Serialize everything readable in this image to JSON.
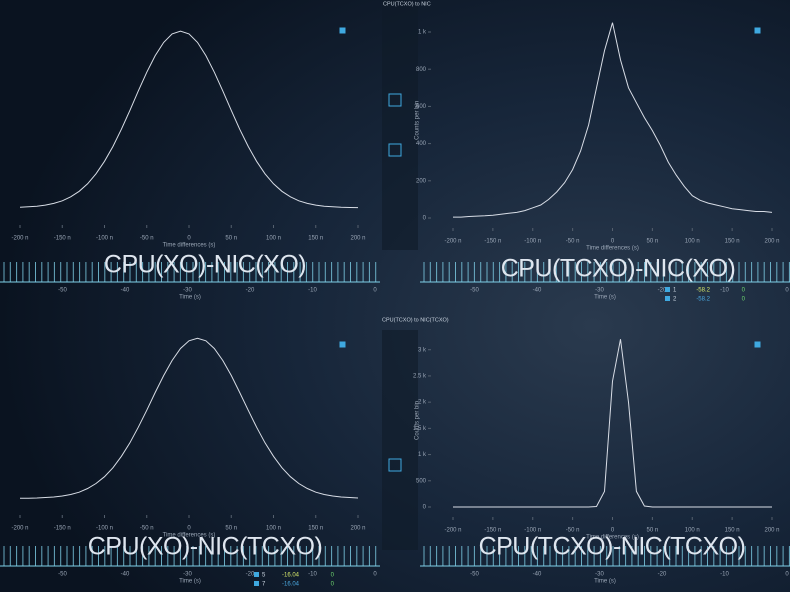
{
  "chart_data": [
    {
      "type": "line",
      "title": "CPU(XO)-NIC(XO)",
      "xlabel": "Time differences (s)",
      "color": "#d8dde6",
      "x": [
        -200,
        -190,
        -180,
        -170,
        -160,
        -150,
        -140,
        -130,
        -120,
        -110,
        -100,
        -90,
        -80,
        -70,
        -60,
        -50,
        -40,
        -30,
        -20,
        -10,
        0,
        10,
        20,
        30,
        40,
        50,
        60,
        70,
        80,
        90,
        100,
        110,
        120,
        130,
        140,
        150,
        160,
        170,
        180,
        190,
        200
      ],
      "values": [
        42,
        45,
        48,
        54,
        63,
        77,
        99,
        129,
        170,
        224,
        292,
        373,
        467,
        569,
        675,
        777,
        867,
        939,
        985,
        1000,
        985,
        939,
        867,
        777,
        675,
        569,
        467,
        373,
        292,
        224,
        170,
        129,
        99,
        77,
        63,
        54,
        48,
        45,
        42,
        41,
        40
      ],
      "xlim": [
        -200,
        200
      ],
      "ylim": [
        0,
        1050
      ],
      "xticks": [
        {
          "value": -200,
          "label": "-200 n"
        },
        {
          "value": -150,
          "label": "-150 n"
        },
        {
          "value": -100,
          "label": "-100 n"
        },
        {
          "value": -50,
          "label": "-50 n"
        },
        0,
        {
          "value": 50,
          "label": "50 n"
        },
        {
          "value": 100,
          "label": "100 n"
        },
        {
          "value": 150,
          "label": "150 n"
        },
        {
          "value": 200,
          "label": "200 n"
        }
      ]
    },
    {
      "type": "line",
      "title": "CPU(TCXO)-NIC(XO)",
      "xlabel": "Time differences (s)",
      "ylabel": "Counts per bin",
      "color": "#d8dde6",
      "x": [
        -200,
        -190,
        -180,
        -170,
        -160,
        -150,
        -140,
        -130,
        -120,
        -110,
        -100,
        -90,
        -80,
        -70,
        -60,
        -50,
        -40,
        -30,
        -20,
        -10,
        0,
        10,
        20,
        30,
        40,
        50,
        60,
        70,
        80,
        90,
        100,
        110,
        120,
        130,
        140,
        150,
        160,
        170,
        180,
        190,
        200
      ],
      "values": [
        5,
        5,
        8,
        10,
        12,
        15,
        20,
        25,
        30,
        40,
        55,
        70,
        100,
        140,
        190,
        260,
        360,
        500,
        700,
        900,
        1050,
        850,
        700,
        620,
        540,
        470,
        390,
        300,
        230,
        170,
        120,
        95,
        80,
        70,
        60,
        50,
        45,
        40,
        35,
        35,
        30
      ],
      "xlim": [
        -200,
        200
      ],
      "ylim": [
        0,
        1050
      ],
      "xticks": [
        {
          "value": -200,
          "label": "-200 n"
        },
        {
          "value": -150,
          "label": "-150 n"
        },
        {
          "value": -100,
          "label": "-100 n"
        },
        {
          "value": -50,
          "label": "-50 n"
        },
        0,
        {
          "value": 50,
          "label": "50 n"
        },
        {
          "value": 100,
          "label": "100 n"
        },
        {
          "value": 150,
          "label": "150 n"
        },
        {
          "value": 200,
          "label": "200 n"
        }
      ],
      "yticks": [
        0,
        200,
        400,
        600,
        800,
        {
          "value": 1000,
          "label": "1 k"
        }
      ]
    },
    {
      "type": "line",
      "title": "CPU(XO)-NIC(TCXO)",
      "xlabel": "Time differences (s)",
      "color": "#d8dde6",
      "x": [
        -200,
        -190,
        -180,
        -170,
        -160,
        -150,
        -140,
        -130,
        -120,
        -110,
        -100,
        -90,
        -80,
        -70,
        -60,
        -50,
        -40,
        -30,
        -20,
        -10,
        0,
        10,
        20,
        30,
        40,
        50,
        60,
        70,
        80,
        90,
        100,
        110,
        120,
        130,
        140,
        150,
        160,
        170,
        180,
        190,
        200
      ],
      "values": [
        40,
        41,
        42,
        45,
        48,
        54,
        63,
        77,
        99,
        129,
        170,
        224,
        292,
        373,
        467,
        569,
        675,
        777,
        867,
        939,
        985,
        1000,
        985,
        939,
        867,
        777,
        675,
        569,
        467,
        373,
        292,
        224,
        170,
        129,
        99,
        77,
        63,
        54,
        48,
        45,
        42
      ],
      "xlim": [
        -200,
        200
      ],
      "ylim": [
        0,
        1050
      ],
      "xticks": [
        {
          "value": -200,
          "label": "-200 n"
        },
        {
          "value": -150,
          "label": "-150 n"
        },
        {
          "value": -100,
          "label": "-100 n"
        },
        {
          "value": -50,
          "label": "-50 n"
        },
        0,
        {
          "value": 50,
          "label": "50 n"
        },
        {
          "value": 100,
          "label": "100 n"
        },
        {
          "value": 150,
          "label": "150 n"
        },
        {
          "value": 200,
          "label": "200 n"
        }
      ]
    },
    {
      "type": "line",
      "title": "CPU(TCXO)-NIC(TCXO)",
      "xlabel": "Time differences (s)",
      "ylabel": "Counts per bin",
      "color": "#d8dde6",
      "x": [
        -200,
        -190,
        -180,
        -170,
        -160,
        -150,
        -140,
        -130,
        -120,
        -110,
        -100,
        -90,
        -80,
        -70,
        -60,
        -50,
        -40,
        -30,
        -20,
        -10,
        0,
        10,
        20,
        30,
        40,
        50,
        60,
        70,
        80,
        90,
        100,
        110,
        120,
        130,
        140,
        150,
        160,
        170,
        180,
        190,
        200
      ],
      "values": [
        0,
        0,
        0,
        0,
        0,
        0,
        0,
        0,
        0,
        0,
        0,
        0,
        0,
        0,
        0,
        0,
        0,
        0,
        10,
        300,
        2400,
        3200,
        2000,
        300,
        20,
        0,
        0,
        0,
        0,
        0,
        0,
        0,
        0,
        0,
        0,
        0,
        0,
        0,
        0,
        0,
        0
      ],
      "xlim": [
        -200,
        200
      ],
      "ylim": [
        0,
        3300
      ],
      "xticks": [
        {
          "value": -200,
          "label": "-200 n"
        },
        {
          "value": -150,
          "label": "-150 n"
        },
        {
          "value": -100,
          "label": "-100 n"
        },
        {
          "value": -50,
          "label": "-50 n"
        },
        0,
        {
          "value": 50,
          "label": "50 n"
        },
        {
          "value": 100,
          "label": "100 n"
        },
        {
          "value": 150,
          "label": "150 n"
        },
        {
          "value": 200,
          "label": "200 n"
        }
      ],
      "yticks": [
        0,
        500,
        {
          "value": 1000,
          "label": "1 k"
        },
        {
          "value": 1500,
          "label": "1.5 k"
        },
        {
          "value": 2000,
          "label": "2 k"
        },
        {
          "value": 2500,
          "label": "2.5 k"
        },
        {
          "value": 3000,
          "label": "3 k"
        }
      ]
    }
  ],
  "ui": {
    "window_titles": [
      "CPU(TCXO) to NIC",
      "CPU(TCXO) to NIC(TCXO)"
    ],
    "strip_ticks": [
      "-50",
      "-40",
      "-30",
      "-20",
      "-10",
      "0"
    ],
    "strip_label": "Time (s)",
    "table_top": [
      [
        "1",
        "-58.2",
        "0"
      ],
      [
        "2",
        "-58.2",
        "0"
      ]
    ],
    "table_bottom": [
      [
        "5",
        "-16.04",
        "0"
      ],
      [
        "7",
        "-16.04",
        "0"
      ]
    ]
  }
}
